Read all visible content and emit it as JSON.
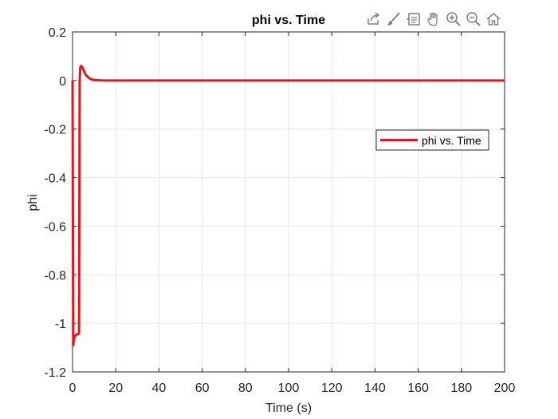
{
  "toolbar": {
    "icons": [
      "export-icon",
      "brush-icon",
      "data-tips-icon",
      "pan-icon",
      "zoom-in-icon",
      "zoom-out-icon",
      "home-icon"
    ]
  },
  "chart_data": {
    "type": "line",
    "title": "phi vs. Time",
    "xlabel": "Time (s)",
    "ylabel": "phi",
    "xlim": [
      0,
      200
    ],
    "ylim": [
      -1.2,
      0.2
    ],
    "xticks": [
      0,
      20,
      40,
      60,
      80,
      100,
      120,
      140,
      160,
      180,
      200
    ],
    "xtick_labels": [
      "0",
      "20",
      "40",
      "60",
      "80",
      "100",
      "120",
      "140",
      "160",
      "180",
      "200"
    ],
    "yticks": [
      0.2,
      0,
      -0.2,
      -0.4,
      -0.6,
      -0.8,
      -1,
      -1.2
    ],
    "ytick_labels": [
      "0.2",
      "0",
      "-0.2",
      "-0.4",
      "-0.6",
      "-0.8",
      "-1",
      "-1.2"
    ],
    "grid": true,
    "legend_position": "right",
    "series": [
      {
        "name": "phi vs. Time",
        "color": "#e8141c",
        "x": [
          0,
          0.3,
          0.6,
          1.0,
          1.5,
          2.0,
          2.5,
          3.0,
          3.3,
          3.6,
          4.0,
          4.5,
          5.0,
          5.5,
          6.0,
          7.0,
          8.0,
          9.0,
          10.0,
          12.0,
          15.0,
          20.0,
          40.0,
          80.0,
          120.0,
          160.0,
          200.0
        ],
        "y": [
          0,
          -1.09,
          -1.07,
          -1.05,
          -1.05,
          -1.045,
          -1.045,
          -1.04,
          0.0,
          0.055,
          0.06,
          0.055,
          0.045,
          0.035,
          0.025,
          0.015,
          0.008,
          0.004,
          0.002,
          0.001,
          0.0,
          0.0,
          0.0,
          0.0,
          0.0,
          0.0,
          0.0
        ]
      }
    ]
  }
}
